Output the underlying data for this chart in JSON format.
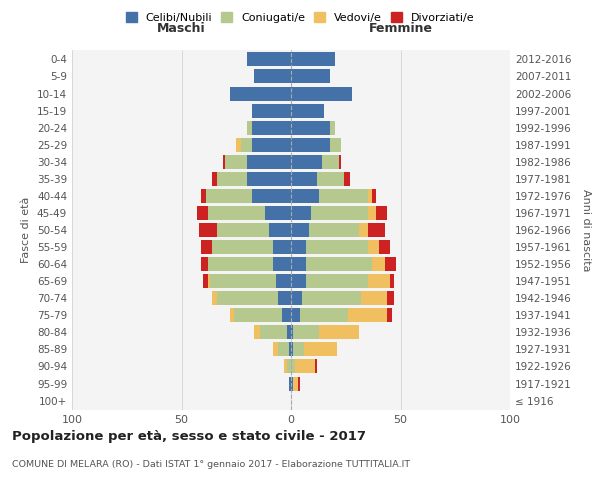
{
  "age_groups": [
    "100+",
    "95-99",
    "90-94",
    "85-89",
    "80-84",
    "75-79",
    "70-74",
    "65-69",
    "60-64",
    "55-59",
    "50-54",
    "45-49",
    "40-44",
    "35-39",
    "30-34",
    "25-29",
    "20-24",
    "15-19",
    "10-14",
    "5-9",
    "0-4"
  ],
  "birth_years": [
    "≤ 1916",
    "1917-1921",
    "1922-1926",
    "1927-1931",
    "1932-1936",
    "1937-1941",
    "1942-1946",
    "1947-1951",
    "1952-1956",
    "1957-1961",
    "1962-1966",
    "1967-1971",
    "1972-1976",
    "1977-1981",
    "1982-1986",
    "1987-1991",
    "1992-1996",
    "1997-2001",
    "2002-2006",
    "2007-2011",
    "2012-2016"
  ],
  "maschi": {
    "celibi": [
      0,
      1,
      0,
      1,
      2,
      4,
      6,
      7,
      8,
      8,
      10,
      12,
      18,
      20,
      20,
      18,
      18,
      18,
      28,
      17,
      20
    ],
    "coniugati": [
      0,
      0,
      2,
      5,
      12,
      22,
      28,
      30,
      30,
      28,
      24,
      26,
      21,
      14,
      10,
      5,
      2,
      0,
      0,
      0,
      0
    ],
    "vedovi": [
      0,
      0,
      1,
      2,
      3,
      2,
      2,
      1,
      0,
      0,
      0,
      0,
      0,
      0,
      0,
      2,
      0,
      0,
      0,
      0,
      0
    ],
    "divorziati": [
      0,
      0,
      0,
      0,
      0,
      0,
      0,
      2,
      3,
      5,
      8,
      5,
      2,
      2,
      1,
      0,
      0,
      0,
      0,
      0,
      0
    ]
  },
  "femmine": {
    "nubili": [
      0,
      1,
      0,
      1,
      1,
      4,
      5,
      7,
      7,
      7,
      8,
      9,
      13,
      12,
      14,
      18,
      18,
      15,
      28,
      18,
      20
    ],
    "coniugate": [
      0,
      0,
      2,
      5,
      12,
      22,
      27,
      28,
      30,
      28,
      23,
      26,
      22,
      12,
      8,
      5,
      2,
      0,
      0,
      0,
      0
    ],
    "vedove": [
      0,
      2,
      9,
      15,
      18,
      18,
      12,
      10,
      6,
      5,
      4,
      4,
      2,
      0,
      0,
      0,
      0,
      0,
      0,
      0,
      0
    ],
    "divorziate": [
      0,
      1,
      1,
      0,
      0,
      2,
      3,
      2,
      5,
      5,
      8,
      5,
      2,
      3,
      1,
      0,
      0,
      0,
      0,
      0,
      0
    ]
  },
  "colors": {
    "celibi": "#4472a8",
    "coniugati": "#b5c98e",
    "vedovi": "#f0c060",
    "divorziati": "#cc2222"
  },
  "xlim": 100,
  "title_main": "Popolazione per età, sesso e stato civile - 2017",
  "title_sub": "COMUNE DI MELARA (RO) - Dati ISTAT 1° gennaio 2017 - Elaborazione TUTTITALIA.IT",
  "ylabel_left": "Fasce di età",
  "ylabel_right": "Anni di nascita",
  "xlabel_maschi": "Maschi",
  "xlabel_femmine": "Femmine",
  "bg_color": "#f4f4f4",
  "grid_color": "#cccccc"
}
